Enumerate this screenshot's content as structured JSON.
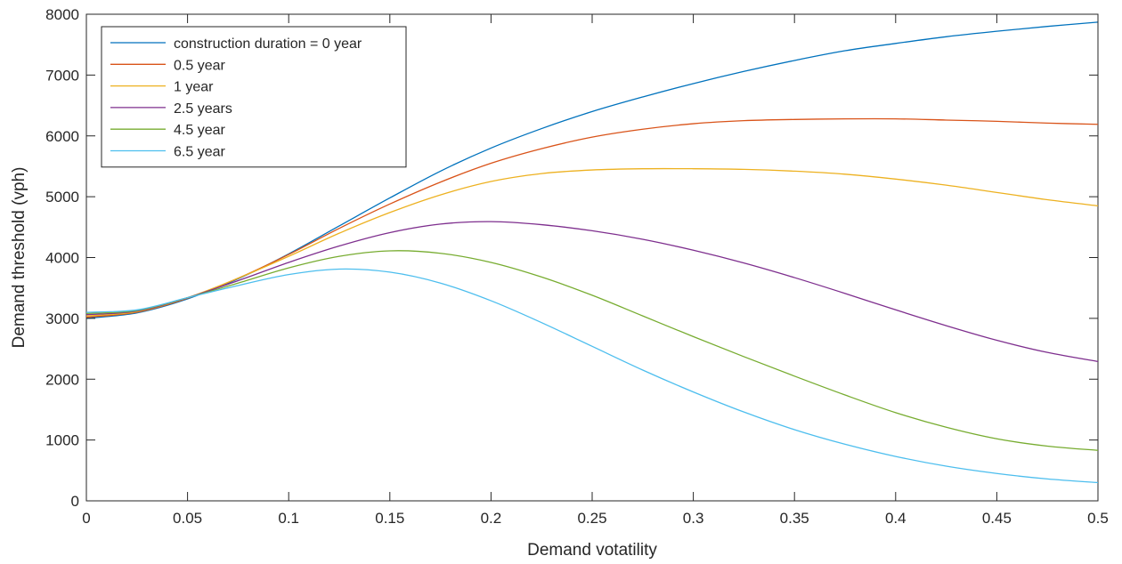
{
  "chart_data": {
    "type": "line",
    "title": "",
    "xlabel": "Demand votatility",
    "ylabel": "Demand threshold (vph)",
    "xlim": [
      0,
      0.5
    ],
    "ylim": [
      0,
      8000
    ],
    "xticks": [
      0,
      0.05,
      0.1,
      0.15,
      0.2,
      0.25,
      0.3,
      0.35,
      0.4,
      0.45,
      0.5
    ],
    "xtick_labels": [
      "0",
      "0.05",
      "0.1",
      "0.15",
      "0.2",
      "0.25",
      "0.3",
      "0.35",
      "0.4",
      "0.45",
      "0.5"
    ],
    "yticks": [
      0,
      1000,
      2000,
      3000,
      4000,
      5000,
      6000,
      7000,
      8000
    ],
    "ytick_labels": [
      "0",
      "1000",
      "2000",
      "3000",
      "4000",
      "5000",
      "6000",
      "7000",
      "8000"
    ],
    "grid": false,
    "legend_position": "top-left",
    "x": [
      0,
      0.025,
      0.05,
      0.075,
      0.1,
      0.125,
      0.15,
      0.175,
      0.2,
      0.225,
      0.25,
      0.275,
      0.3,
      0.325,
      0.35,
      0.375,
      0.4,
      0.425,
      0.45,
      0.475,
      0.5
    ],
    "series": [
      {
        "name": "construction duration = 0 year",
        "color": "#0072BD",
        "values": [
          3000,
          3090,
          3320,
          3650,
          4060,
          4520,
          4980,
          5420,
          5800,
          6120,
          6400,
          6640,
          6860,
          7060,
          7240,
          7400,
          7520,
          7630,
          7720,
          7800,
          7870
        ]
      },
      {
        "name": "0.5 year",
        "color": "#D95319",
        "values": [
          3020,
          3100,
          3330,
          3660,
          4050,
          4480,
          4880,
          5240,
          5550,
          5790,
          5980,
          6110,
          6200,
          6250,
          6270,
          6280,
          6280,
          6260,
          6240,
          6210,
          6190
        ]
      },
      {
        "name": "1 year",
        "color": "#EDB120",
        "values": [
          3040,
          3110,
          3340,
          3660,
          4020,
          4400,
          4740,
          5030,
          5250,
          5380,
          5440,
          5460,
          5460,
          5450,
          5420,
          5370,
          5290,
          5190,
          5070,
          4950,
          4850
        ]
      },
      {
        "name": "2.5 years",
        "color": "#7E2F8E",
        "values": [
          3060,
          3120,
          3340,
          3620,
          3920,
          4190,
          4410,
          4550,
          4590,
          4540,
          4440,
          4300,
          4120,
          3910,
          3670,
          3410,
          3140,
          2880,
          2640,
          2440,
          2290
        ]
      },
      {
        "name": "4.5 year",
        "color": "#77AC30",
        "values": [
          3080,
          3130,
          3340,
          3580,
          3830,
          4020,
          4110,
          4070,
          3920,
          3680,
          3380,
          3040,
          2700,
          2370,
          2050,
          1740,
          1450,
          1210,
          1020,
          900,
          830
        ]
      },
      {
        "name": "6.5 year",
        "color": "#4DBEEE",
        "values": [
          3100,
          3140,
          3340,
          3540,
          3720,
          3810,
          3760,
          3580,
          3290,
          2930,
          2540,
          2150,
          1790,
          1460,
          1170,
          930,
          730,
          570,
          450,
          360,
          300
        ]
      }
    ]
  }
}
